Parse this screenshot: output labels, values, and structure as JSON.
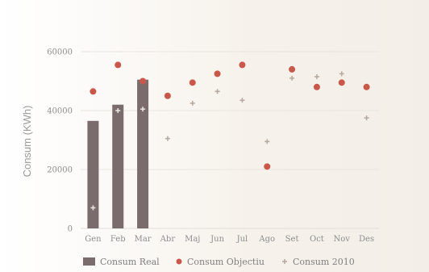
{
  "chart_data": {
    "type": "bar",
    "title": "",
    "xlabel": "",
    "ylabel": "Consum (KWh)",
    "categories": [
      "Gen",
      "Feb",
      "Mar",
      "Abr",
      "Maj",
      "Jun",
      "Jul",
      "Ago",
      "Set",
      "Oct",
      "Nov",
      "Des"
    ],
    "ylim": [
      0,
      60000
    ],
    "yticks": [
      0,
      20000,
      40000,
      60000
    ],
    "ytick_labels": [
      "0",
      "20000",
      "40000",
      "60000"
    ],
    "grid": true,
    "legend_position": "bottom",
    "series": [
      {
        "name": "Consum Real",
        "type": "bar",
        "color": "#7a6c6c",
        "values": [
          36500,
          42000,
          50500,
          null,
          null,
          null,
          null,
          null,
          null,
          null,
          null,
          null
        ]
      },
      {
        "name": "Consum Objectiu",
        "type": "scatter",
        "marker": "circle",
        "color": "#c9584b",
        "values": [
          46500,
          55500,
          50000,
          45000,
          49500,
          52500,
          55500,
          21000,
          54000,
          48000,
          49500,
          48000
        ]
      },
      {
        "name": "Consum 2010",
        "type": "scatter",
        "marker": "cross",
        "color": "#b7aaa2",
        "values": [
          7000,
          40000,
          40500,
          30500,
          42500,
          46500,
          43500,
          29500,
          51000,
          51500,
          52500,
          37500
        ]
      }
    ]
  }
}
